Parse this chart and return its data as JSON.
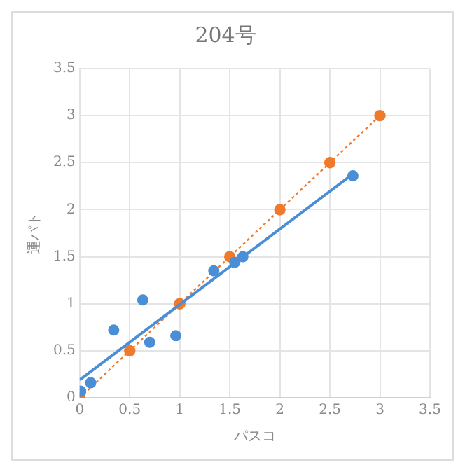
{
  "chart_data": {
    "type": "scatter",
    "title": "204号",
    "xlabel": "パスコ",
    "ylabel": "運パト",
    "xlim": [
      0,
      3.5
    ],
    "ylim": [
      0,
      3.5
    ],
    "xticks": [
      0,
      0.5,
      1,
      1.5,
      2,
      2.5,
      3,
      3.5
    ],
    "yticks": [
      0,
      0.5,
      1,
      1.5,
      2,
      2.5,
      3,
      3.5
    ],
    "grid": true,
    "legend": false,
    "marker": "circle",
    "series": [
      {
        "color": "#4a8fd6",
        "x": [
          0.01,
          0.11,
          0.34,
          0.63,
          0.7,
          0.96,
          1.34,
          1.55,
          1.63,
          2.73
        ],
        "values": [
          0.07,
          0.16,
          0.72,
          1.04,
          0.59,
          0.66,
          1.35,
          1.44,
          1.5,
          2.36
        ]
      },
      {
        "type": "line",
        "color": "#4a8fd6",
        "marker": "none",
        "line_style": "solid",
        "x": [
          0,
          2.73
        ],
        "values": [
          0.19,
          2.38
        ]
      },
      {
        "type": "line",
        "color": "#f07a2a",
        "line_style": "dotted",
        "x": [
          0,
          0.5,
          1,
          1.5,
          2,
          2.5,
          3
        ],
        "values": [
          0,
          0.5,
          1,
          1.5,
          2,
          2.5,
          3
        ]
      }
    ]
  }
}
